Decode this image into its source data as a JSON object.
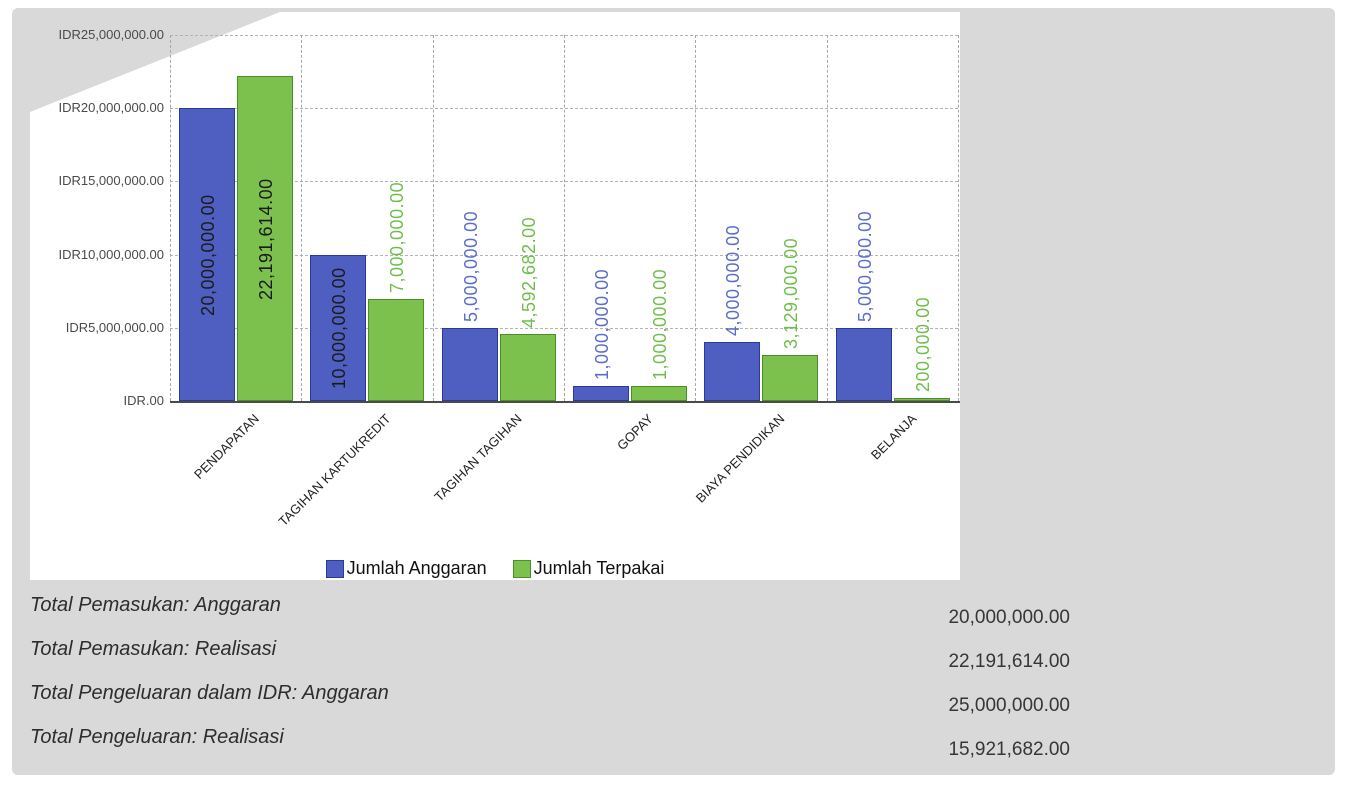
{
  "chart_data": {
    "type": "bar",
    "categories": [
      "PENDAPATAN",
      "TAGIHAN KARTUKREDIT",
      "TAGIHAN TAGIHAN",
      "GOPAY",
      "BIAYA PENDIDIKAN",
      "BELANJA"
    ],
    "series": [
      {
        "name": "Jumlah Anggaran",
        "color": "#4e5fc1",
        "border_color": "#2c3a96",
        "label_color": "#5a6cc8",
        "values": [
          20000000,
          10000000,
          5000000,
          1000000,
          4000000,
          5000000
        ],
        "labels": [
          "20,000,000.00",
          "10,000,000.00",
          "5,000,000.00",
          "1,000,000.00",
          "4,000,000.00",
          "5,000,000.00"
        ]
      },
      {
        "name": "Jumlah Terpakai",
        "color": "#7cc14e",
        "border_color": "#4c8f25",
        "label_color": "#6fbe4a",
        "values": [
          22191614,
          7000000,
          4592682,
          1000000,
          3129000,
          200000
        ],
        "labels": [
          "22,191,614.00",
          "7,000,000.00",
          "4,592,682.00",
          "1,000,000.00",
          "3,129,000.00",
          "200,000.00"
        ]
      }
    ],
    "ylim": [
      0,
      25000000
    ],
    "ytick_step": 5000000,
    "ytick_labels": [
      "IDR.00",
      "IDR5,000,000.00",
      "IDR10,000,000.00",
      "IDR15,000,000.00",
      "IDR20,000,000.00",
      "IDR25,000,000.00"
    ],
    "grid": "dashed",
    "legend_position": "bottom",
    "inside_label_color": "#1a1a1a",
    "currency": "IDR"
  },
  "summary": {
    "rows": [
      {
        "label": "Total Pemasukan: Anggaran",
        "value": "20,000,000.00"
      },
      {
        "label": "Total Pemasukan: Realisasi",
        "value": "22,191,614.00"
      },
      {
        "label": "Total Pengeluaran dalam IDR: Anggaran",
        "value": "25,000,000.00"
      },
      {
        "label": "Total Pengeluaran: Realisasi",
        "value": "15,921,682.00"
      }
    ]
  }
}
